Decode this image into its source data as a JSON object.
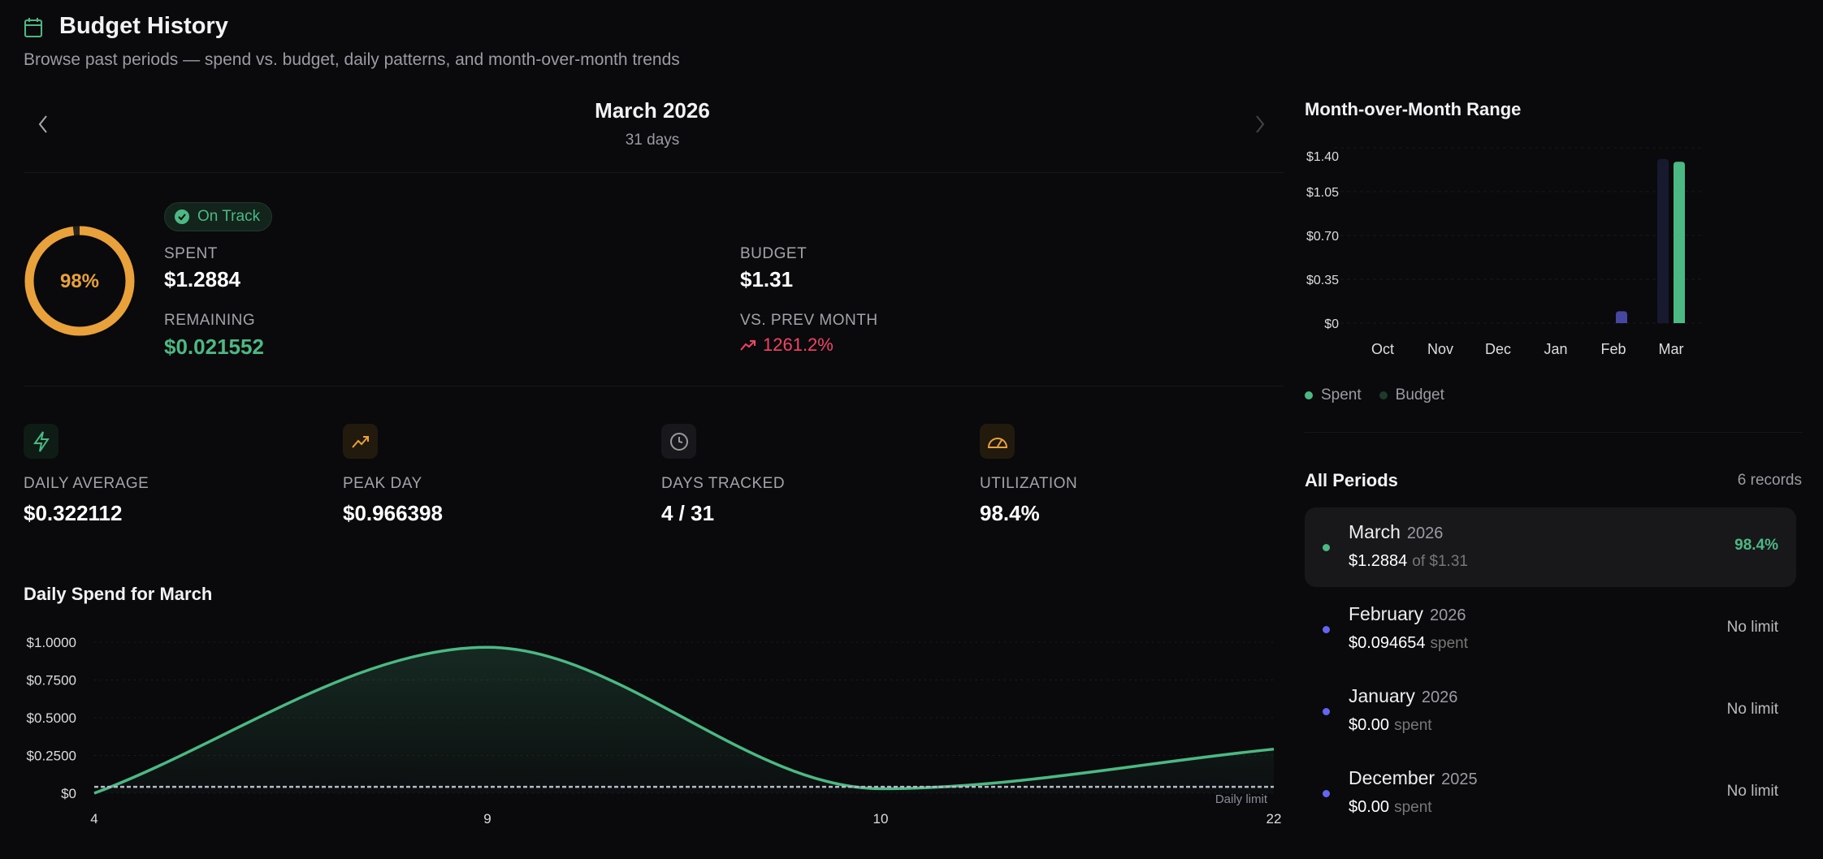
{
  "header": {
    "title": "Budget History",
    "subtitle": "Browse past periods — spend vs. budget, daily patterns, and month-over-month trends",
    "icon": "calendar-icon"
  },
  "period_nav": {
    "month": "March 2026",
    "days": "31 days"
  },
  "summary": {
    "ring_percent": 98,
    "ring_label": "98%",
    "status": "On Track",
    "spent_label": "SPENT",
    "spent": "$1.2884",
    "budget_label": "BUDGET",
    "budget": "$1.31",
    "remaining_label": "REMAINING",
    "remaining": "$0.021552",
    "prev_label": "VS. PREV MONTH",
    "prev": "1261.2%"
  },
  "stats": [
    {
      "label": "DAILY AVERAGE",
      "value": "$0.322112",
      "icon": "bolt-icon"
    },
    {
      "label": "PEAK DAY",
      "value": "$0.966398",
      "icon": "trending-up-icon"
    },
    {
      "label": "DAYS TRACKED",
      "value": "4 / 31",
      "icon": "clock-icon"
    },
    {
      "label": "UTILIZATION",
      "value": "98.4%",
      "icon": "gauge-icon"
    }
  ],
  "colors": {
    "green": "#4cb884",
    "orange": "#e9a23b",
    "red": "#ef4466",
    "purple": "#6366f1"
  },
  "chart_data": [
    {
      "type": "area",
      "title": "Daily Spend for March",
      "x": [
        "4",
        "9",
        "10",
        "22"
      ],
      "values": [
        0.0,
        0.966398,
        0.03,
        0.292
      ],
      "yticks": [
        "$1.0000",
        "$0.7500",
        "$0.5000",
        "$0.2500",
        "$0"
      ],
      "ytick_values": [
        1,
        0.75,
        0.5,
        0.25,
        0
      ],
      "ylim": [
        0,
        1.0
      ],
      "daily_limit": 0.0423,
      "daily_limit_label": "Daily limit"
    },
    {
      "type": "bar",
      "title": "Month-over-Month Range",
      "categories": [
        "Oct",
        "Nov",
        "Dec",
        "Jan",
        "Feb",
        "Mar"
      ],
      "series": [
        {
          "name": "Spent",
          "values": [
            0,
            0,
            0,
            0,
            0.094654,
            1.2884
          ]
        },
        {
          "name": "Budget",
          "values": [
            null,
            null,
            null,
            null,
            null,
            1.31
          ]
        }
      ],
      "yticks": [
        "$1.40",
        "$1.05",
        "$0.70",
        "$0.35",
        "$0"
      ],
      "ytick_values": [
        1.4,
        1.05,
        0.7,
        0.35,
        0
      ],
      "ylim": [
        0,
        1.4
      ],
      "legend": "bottom-left"
    }
  ],
  "periods": {
    "title": "All Periods",
    "count": "6 records",
    "items": [
      {
        "month": "March",
        "year": "2026",
        "amount": "$1.2884",
        "sub": "of $1.31",
        "right": "98.4%",
        "active": true
      },
      {
        "month": "February",
        "year": "2026",
        "amount": "$0.094654",
        "sub": "spent",
        "right": "No limit"
      },
      {
        "month": "January",
        "year": "2026",
        "amount": "$0.00",
        "sub": "spent",
        "right": "No limit"
      },
      {
        "month": "December",
        "year": "2025",
        "amount": "$0.00",
        "sub": "spent",
        "right": "No limit"
      }
    ]
  }
}
